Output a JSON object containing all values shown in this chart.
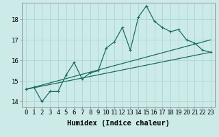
{
  "xlabel": "Humidex (Indice chaleur)",
  "background_color": "#cceae8",
  "line_color": "#1a6b5e",
  "grid_color": "#a8d8d4",
  "xlim": [
    -0.5,
    23.5
  ],
  "ylim": [
    13.75,
    18.8
  ],
  "yticks": [
    14,
    15,
    16,
    17,
    18
  ],
  "xticks": [
    0,
    1,
    2,
    3,
    4,
    5,
    6,
    7,
    8,
    9,
    10,
    11,
    12,
    13,
    14,
    15,
    16,
    17,
    18,
    19,
    20,
    21,
    22,
    23
  ],
  "series1_x": [
    0,
    1,
    2,
    3,
    4,
    5,
    6,
    7,
    8,
    9,
    10,
    11,
    12,
    13,
    14,
    15,
    16,
    17,
    18,
    19,
    20,
    21,
    22,
    23
  ],
  "series1_y": [
    14.6,
    14.7,
    14.0,
    14.5,
    14.5,
    15.3,
    15.9,
    15.1,
    15.4,
    15.5,
    16.6,
    16.9,
    17.6,
    16.5,
    18.1,
    18.65,
    17.9,
    17.6,
    17.4,
    17.5,
    17.0,
    16.85,
    16.5,
    16.4
  ],
  "series2_x": [
    0,
    23
  ],
  "series2_y": [
    14.6,
    17.0
  ],
  "series3_x": [
    0,
    23
  ],
  "series3_y": [
    14.6,
    16.4
  ],
  "tickfont_size": 6.5,
  "labelfont_size": 7.5
}
